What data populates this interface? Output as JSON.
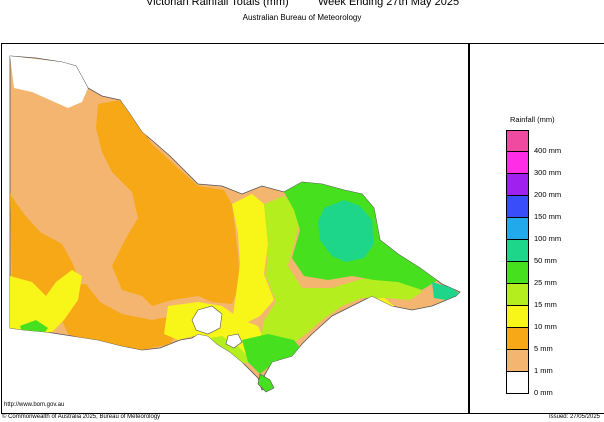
{
  "header": {
    "title": "Victorian Rainfall Totals (mm)",
    "period": "Week Ending 27th May 2025",
    "agency": "Australian Bureau of Meteorology"
  },
  "map": {
    "region": "Victoria",
    "url": "http://www.bom.gov.au"
  },
  "legend": {
    "title": "Rainfall (mm)",
    "items": [
      {
        "label": "400 mm",
        "color": "#f04aa0"
      },
      {
        "label": "300 mm",
        "color": "#ff2ee6"
      },
      {
        "label": "200 mm",
        "color": "#a020f0"
      },
      {
        "label": "150 mm",
        "color": "#3a4dfa"
      },
      {
        "label": "100 mm",
        "color": "#21a9ec"
      },
      {
        "label": "50 mm",
        "color": "#1ed68a"
      },
      {
        "label": "25 mm",
        "color": "#46e01f"
      },
      {
        "label": "15 mm",
        "color": "#b4ee1e"
      },
      {
        "label": "10 mm",
        "color": "#f8f518"
      },
      {
        "label": "5 mm",
        "color": "#f7a817"
      },
      {
        "label": "1 mm",
        "color": "#f3b570"
      },
      {
        "label": "0 mm",
        "color": "#ffffff"
      }
    ]
  },
  "footer": {
    "copyright": "© Commonwealth of Australia 2025, Bureau of Meteorology",
    "issued": "Issued: 27/05/2025"
  }
}
